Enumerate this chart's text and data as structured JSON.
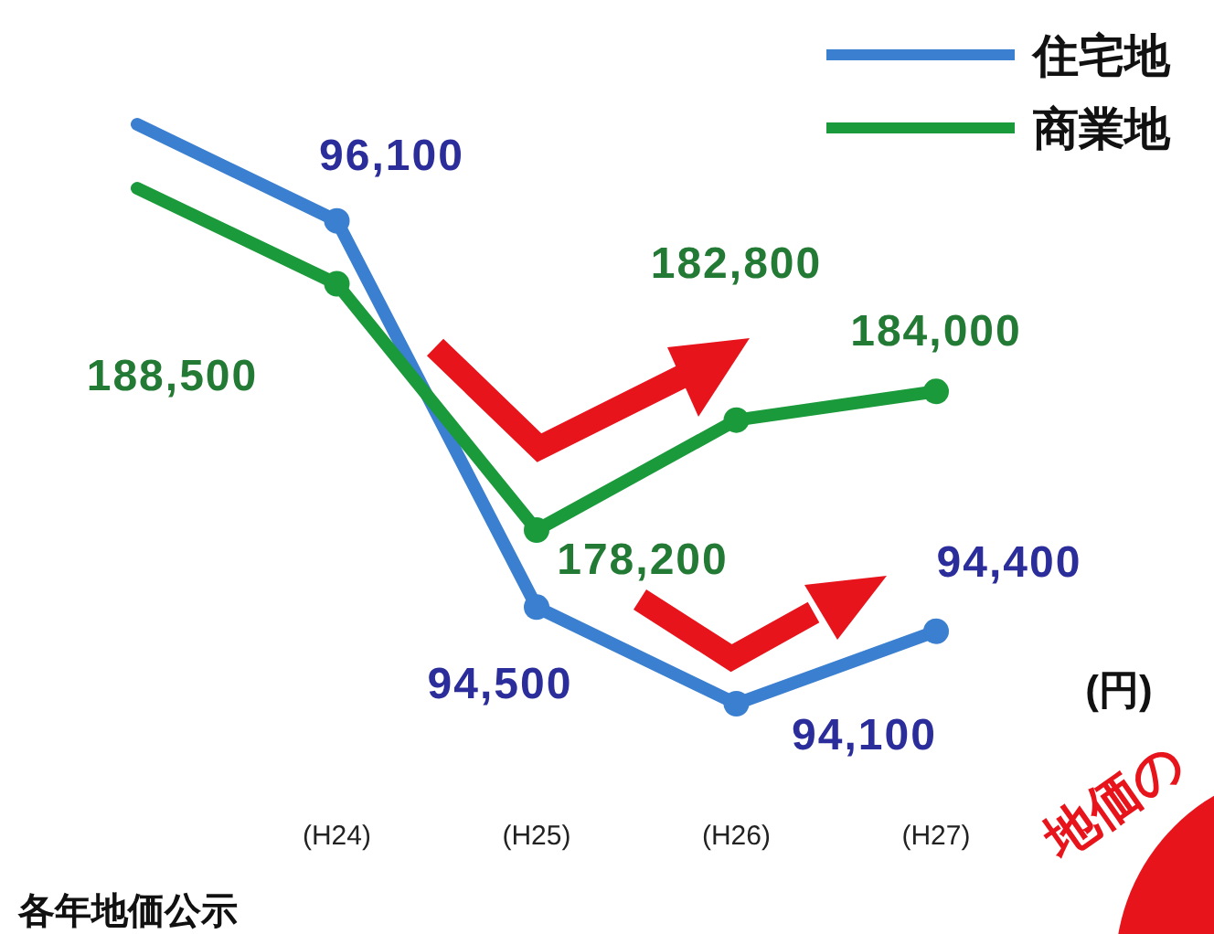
{
  "chart_data": {
    "type": "line",
    "categories": [
      null,
      "(H24)",
      "(H25)",
      "(H26)",
      "(H27)"
    ],
    "series": [
      {
        "name": "住宅地",
        "color": "#3a7fd0",
        "values": [
          96500,
          96100,
          94500,
          94100,
          94400
        ],
        "value_labels": [
          null,
          "96,100",
          "94,500",
          "94,100",
          "94,400"
        ],
        "marker": "circle"
      },
      {
        "name": "商業地",
        "color": "#1a9a3a",
        "values": [
          192500,
          188500,
          178200,
          182800,
          184000
        ],
        "value_labels": [
          null,
          "188,500",
          "178,200",
          "182,800",
          "184,000"
        ],
        "marker": "circle",
        "axis": "y2"
      }
    ],
    "tick_labels": "x",
    "legend": "top right",
    "annotations": [
      "(円)",
      "各年地価公示",
      "地価の"
    ]
  }
}
